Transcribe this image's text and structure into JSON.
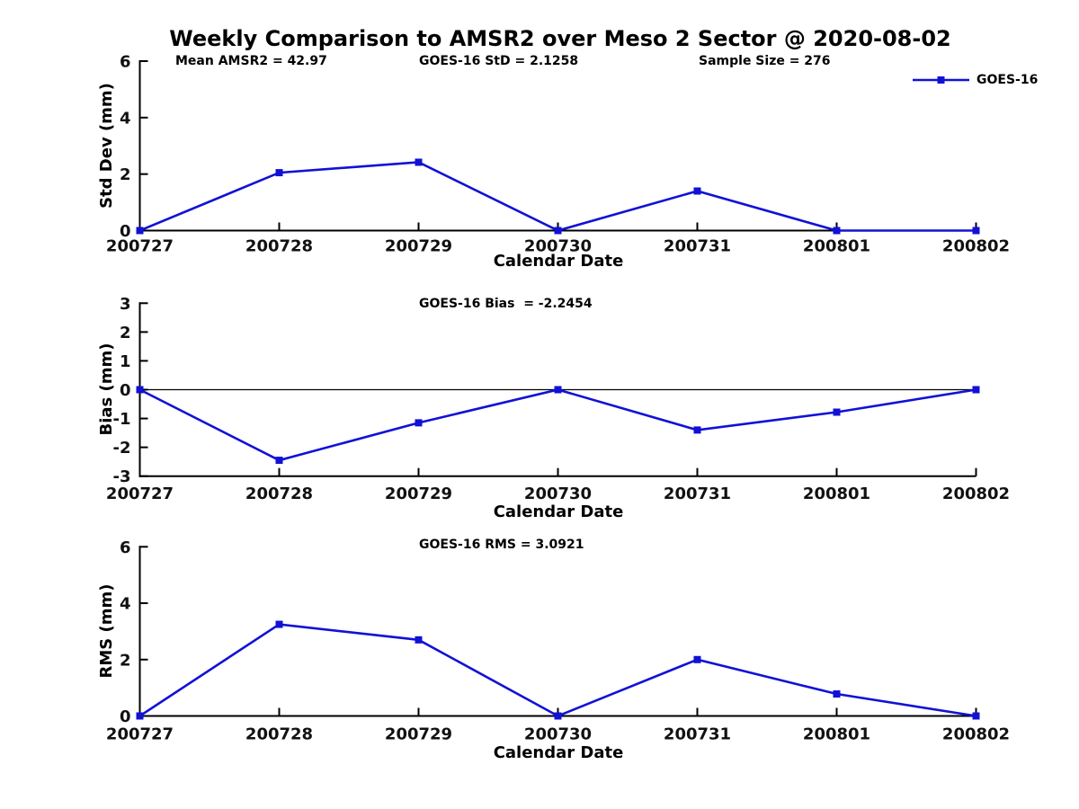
{
  "figure": {
    "title": "Weekly Comparison to AMSR2 over Meso 2 Sector @ 2020-08-02",
    "legend": {
      "label": "GOES-16",
      "color": "#1111d6"
    },
    "axis_color": "#000000"
  },
  "chart_data": [
    {
      "type": "line",
      "name": "std-dev-panel",
      "annotations": [
        {
          "text": "Mean AMSR2 = 42.97"
        },
        {
          "text": "GOES-16 StD = 2.1258"
        },
        {
          "text": "Sample Size = 276"
        }
      ],
      "categories": [
        "200727",
        "200728",
        "200729",
        "200730",
        "200731",
        "200801",
        "200802"
      ],
      "series": [
        {
          "name": "GOES-16",
          "values": [
            0,
            2.05,
            2.42,
            0,
            1.4,
            0,
            0
          ]
        }
      ],
      "xlabel": "Calendar Date",
      "ylabel": "Std Dev (mm)",
      "ylim": [
        0,
        6
      ],
      "yticks": [
        0,
        2,
        4,
        6
      ],
      "zero_line": false,
      "grid": false,
      "legend_position": "top-right"
    },
    {
      "type": "line",
      "name": "bias-panel",
      "annotations": [
        {
          "text": "GOES-16 Bias  = -2.2454"
        }
      ],
      "categories": [
        "200727",
        "200728",
        "200729",
        "200730",
        "200731",
        "200801",
        "200802"
      ],
      "series": [
        {
          "name": "GOES-16",
          "values": [
            0,
            -2.45,
            -1.15,
            0,
            -1.4,
            -0.78,
            0
          ]
        }
      ],
      "xlabel": "Calendar Date",
      "ylabel": "Bias (mm)",
      "ylim": [
        -3,
        3
      ],
      "yticks": [
        3,
        2,
        1,
        0,
        -1,
        -2,
        -3
      ],
      "zero_line": true,
      "grid": false
    },
    {
      "type": "line",
      "name": "rms-panel",
      "annotations": [
        {
          "text": "GOES-16 RMS = 3.0921"
        }
      ],
      "categories": [
        "200727",
        "200728",
        "200729",
        "200730",
        "200731",
        "200801",
        "200802"
      ],
      "series": [
        {
          "name": "GOES-16",
          "values": [
            0,
            3.25,
            2.7,
            0,
            2.0,
            0.78,
            0
          ]
        }
      ],
      "xlabel": "Calendar Date",
      "ylabel": "RMS (mm)",
      "ylim": [
        0,
        6
      ],
      "yticks": [
        0,
        2,
        4,
        6
      ],
      "zero_line": false,
      "grid": false
    }
  ]
}
